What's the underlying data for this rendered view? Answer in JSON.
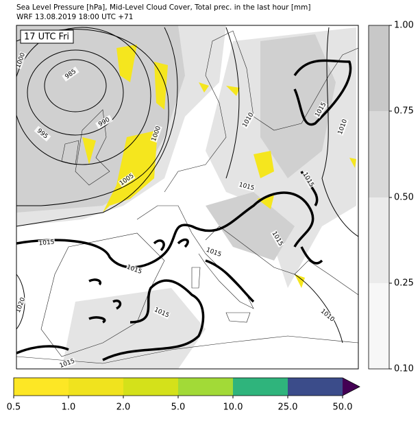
{
  "header": {
    "title": "Sea Level Pressure [hPa], Mid-Level Cloud Cover, Total prec. in the last hour [mm]",
    "subtitle": "WRF 13.08.2019 18:00 UTC +71"
  },
  "map": {
    "time_label": "17 UTC Fri",
    "contour_labels": [
      "985",
      "990",
      "995",
      "1000",
      "1000",
      "1005",
      "1010",
      "1015",
      "1015",
      "1010",
      "1015",
      "1015",
      "1015",
      "1015",
      "1015",
      "1015",
      "1020",
      "1010",
      "1015"
    ]
  },
  "cloud_colorbar": {
    "ticks": [
      "1.00",
      "0.75",
      "0.50",
      "0.25",
      "0.10"
    ]
  },
  "precip_colorbar": {
    "ticks": [
      "0.5",
      "1.0",
      "2.0",
      "5.0",
      "10.0",
      "25.0",
      "50.0"
    ]
  }
}
